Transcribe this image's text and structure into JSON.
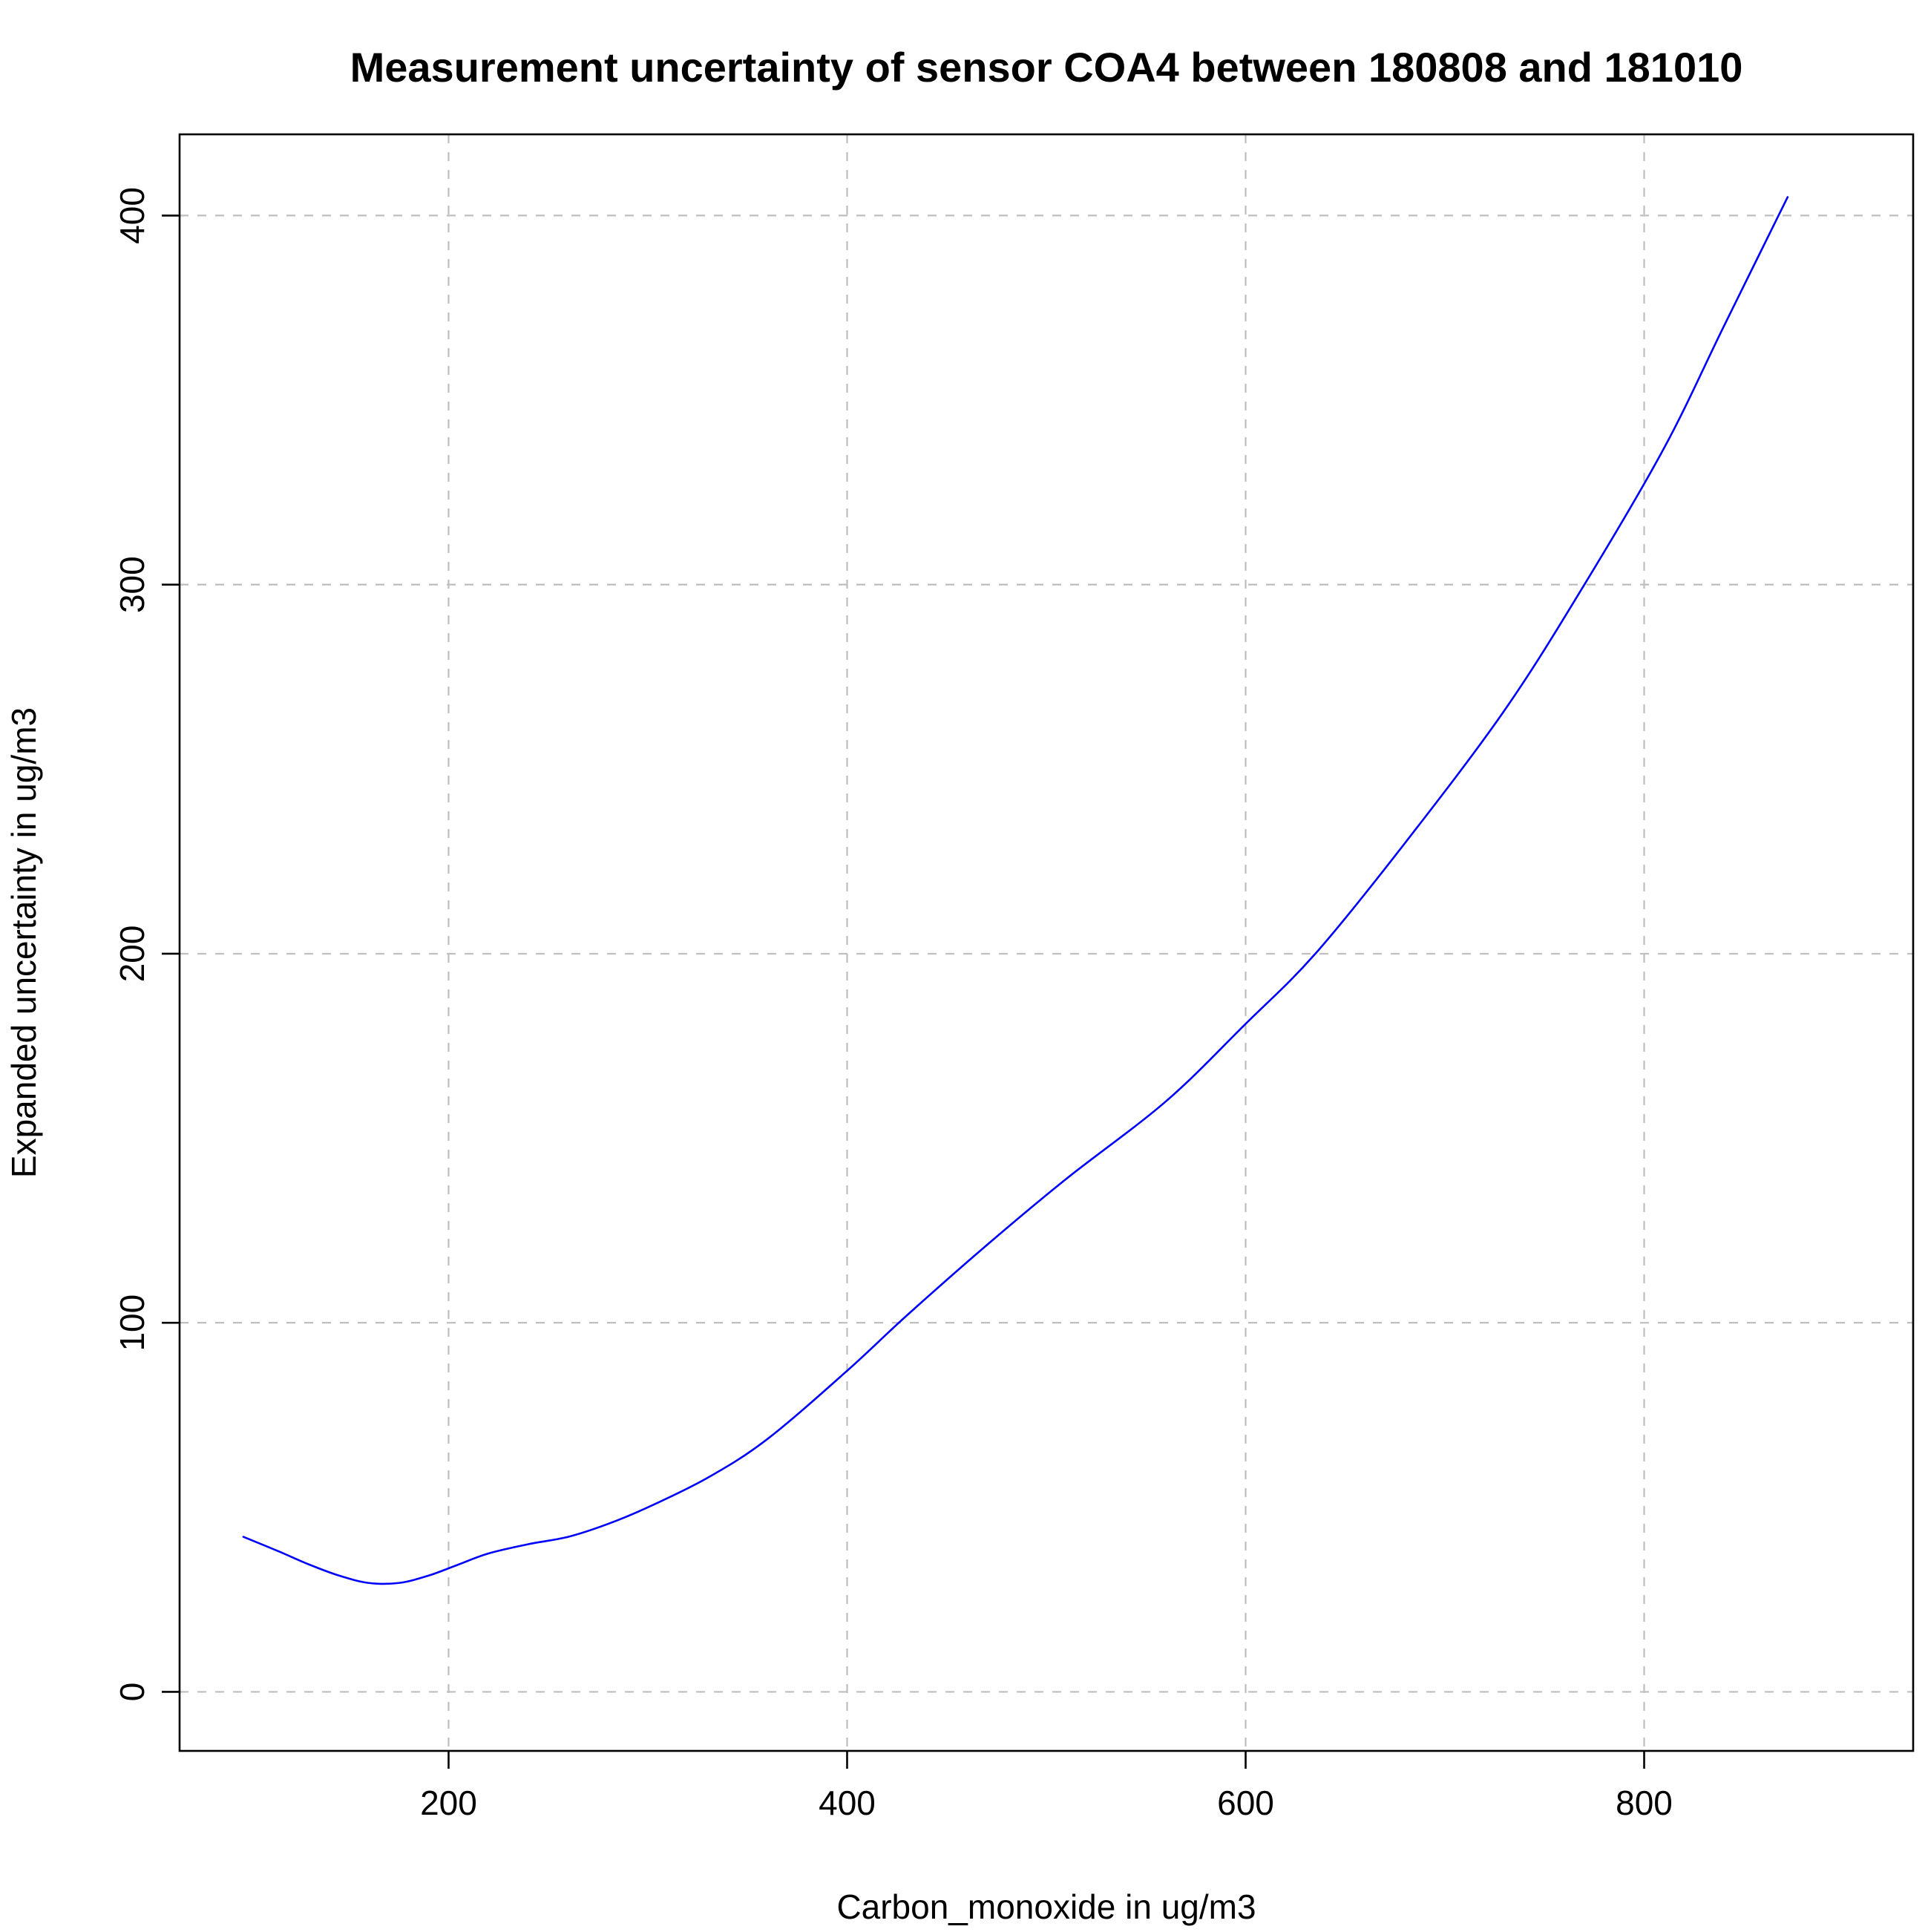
{
  "chart_data": {
    "type": "line",
    "title": "Measurement uncertainty of sensor COA4 between 180808 and 181010",
    "xlabel": "Carbon_monoxide in ug/m3",
    "ylabel": "Expanded uncertainty in ug/m3",
    "xlim": [
      65,
      935
    ],
    "ylim": [
      -16,
      422
    ],
    "xticks": [
      200,
      400,
      600,
      800
    ],
    "xtick_labels": [
      "200",
      "400",
      "600",
      "800"
    ],
    "yticks": [
      0,
      100,
      200,
      300,
      400
    ],
    "ytick_labels": [
      "0",
      "100",
      "200",
      "300",
      "400"
    ],
    "grid": true,
    "grid_style": "dashed",
    "legend": "none",
    "colors": {
      "line": "#0000ff",
      "grid": "#bebebe",
      "axes": "#000000"
    },
    "series": [
      {
        "x": [
          97,
          115,
          130,
          145,
          160,
          175,
          190,
          205,
          220,
          240,
          260,
          280,
          300,
          330,
          360,
          400,
          430,
          470,
          510,
          560,
          600,
          635,
          680,
          730,
          770,
          810,
          840,
          872
        ],
        "values": [
          42,
          38,
          34.5,
          31.5,
          29.5,
          29.5,
          31.5,
          34.5,
          37.5,
          40,
          42,
          45.5,
          50,
          58,
          68.5,
          87,
          102,
          121,
          139,
          160,
          181,
          200,
          230,
          266,
          300,
          337,
          370,
          405
        ]
      }
    ]
  }
}
